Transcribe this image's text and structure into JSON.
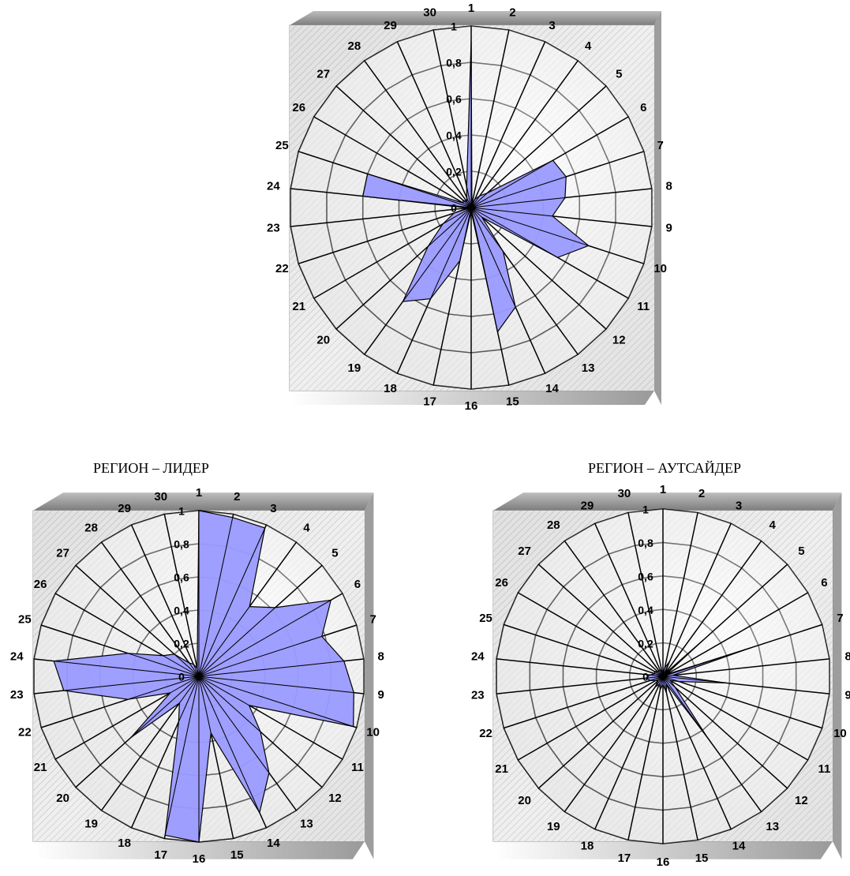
{
  "chart_data": [
    {
      "type": "radar",
      "title": "",
      "categories": [
        "1",
        "2",
        "3",
        "4",
        "5",
        "6",
        "7",
        "8",
        "9",
        "10",
        "11",
        "12",
        "13",
        "14",
        "15",
        "16",
        "17",
        "18",
        "19",
        "20",
        "21",
        "22",
        "23",
        "24",
        "25",
        "26",
        "27",
        "28",
        "29",
        "30"
      ],
      "series": [
        {
          "values": [
            0.92,
            0.02,
            0.05,
            0.08,
            0.12,
            0.52,
            0.55,
            0.52,
            0.45,
            0.68,
            0.55,
            0.08,
            0.3,
            0.6,
            0.7,
            0.02,
            0.3,
            0.55,
            0.64,
            0.32,
            0.18,
            0.1,
            0.02,
            0.6,
            0.6,
            0.05,
            0.06,
            0.04,
            0.06,
            0.12
          ]
        }
      ],
      "radial_ticks": [
        "0",
        "0,2",
        "0,4",
        "0,6",
        "0,8",
        "1"
      ],
      "rlim": [
        0,
        1
      ],
      "grid": true,
      "series_color": "#9a9aff"
    },
    {
      "type": "radar",
      "title": "РЕГИОН – ЛИДЕР",
      "categories": [
        "1",
        "2",
        "3",
        "4",
        "5",
        "6",
        "7",
        "8",
        "9",
        "10",
        "11",
        "12",
        "13",
        "14",
        "15",
        "16",
        "17",
        "18",
        "19",
        "20",
        "21",
        "22",
        "23",
        "24",
        "25",
        "26",
        "27",
        "28",
        "29",
        "30"
      ],
      "series": [
        {
          "values": [
            1.0,
            0.98,
            0.98,
            0.52,
            0.62,
            0.92,
            0.78,
            0.88,
            0.94,
            0.98,
            0.35,
            0.5,
            0.72,
            0.9,
            0.35,
            1.0,
            0.98,
            0.3,
            0.2,
            0.55,
            0.2,
            0.45,
            0.82,
            0.88,
            0.45,
            0.25,
            0.2,
            0.1,
            0.08,
            0.05
          ]
        }
      ],
      "radial_ticks": [
        "0",
        "0,2",
        "0,4",
        "0,6",
        "0,8",
        "1"
      ],
      "rlim": [
        0,
        1
      ],
      "grid": true,
      "series_color": "#9a9aff"
    },
    {
      "type": "radar",
      "title": "РЕГИОН – АУТСАЙДЕР",
      "categories": [
        "1",
        "2",
        "3",
        "4",
        "5",
        "6",
        "7",
        "8",
        "9",
        "10",
        "11",
        "12",
        "13",
        "14",
        "15",
        "16",
        "17",
        "18",
        "19",
        "20",
        "21",
        "22",
        "23",
        "24",
        "25",
        "26",
        "27",
        "28",
        "29",
        "30"
      ],
      "series": [
        {
          "values": [
            0.02,
            0.05,
            0.1,
            0.02,
            0.32,
            0.02,
            0.55,
            0.06,
            0.38,
            0.1,
            0.05,
            0.1,
            0.45,
            0.05,
            0.1,
            0.05,
            0.08,
            0.05,
            0.08,
            0.04,
            0.05,
            0.08,
            0.1,
            0.08,
            0.05,
            0.06,
            0.04,
            0.04,
            0.04,
            0.03
          ]
        }
      ],
      "radial_ticks": [
        "0",
        "0,2",
        "0,4",
        "0,6",
        "0,8",
        "1"
      ],
      "rlim": [
        0,
        1
      ],
      "grid": true,
      "series_color": "#9a9aff"
    }
  ]
}
